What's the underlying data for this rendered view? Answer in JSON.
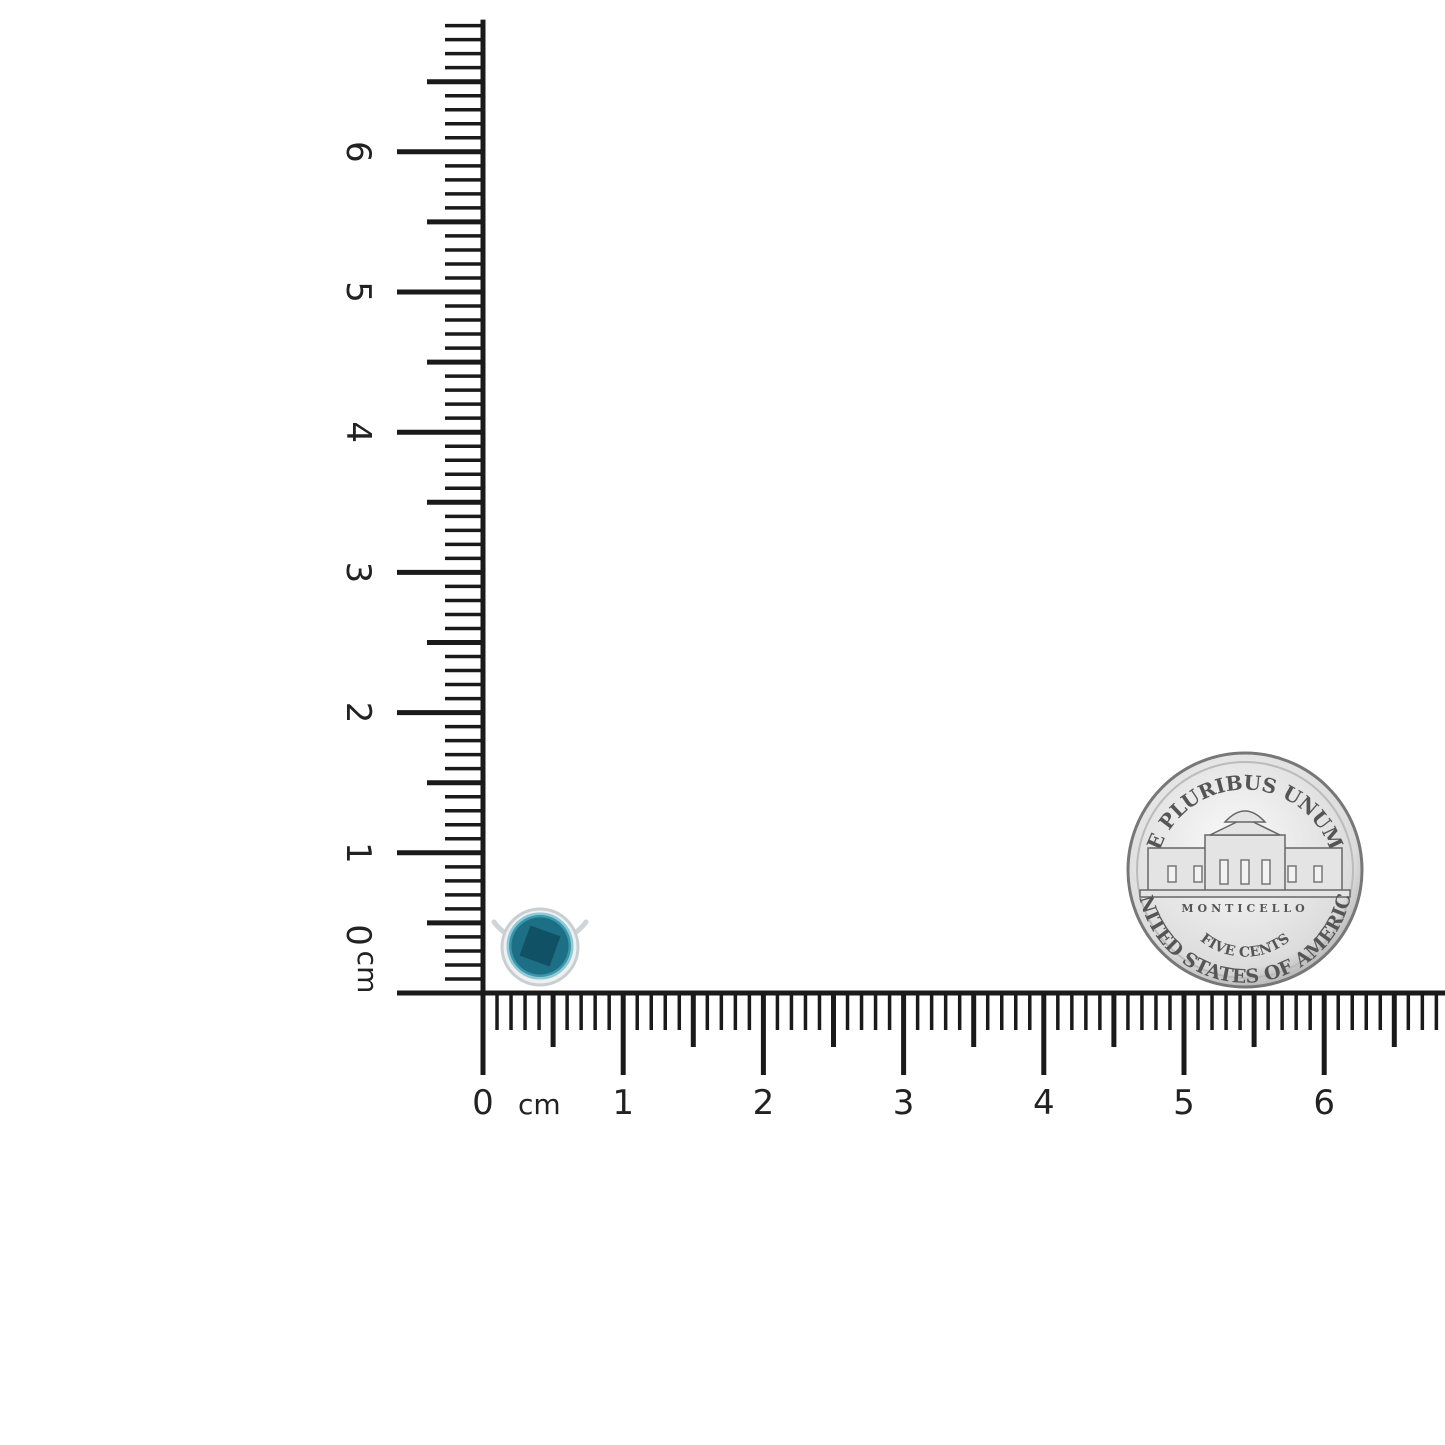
{
  "rulers": {
    "unit": "cm",
    "vertical": {
      "labels": [
        "0",
        "1",
        "2",
        "3",
        "4",
        "5",
        "6"
      ],
      "max_cm": 6.9
    },
    "horizontal": {
      "labels": [
        "0",
        "1",
        "2",
        "3",
        "4",
        "5",
        "6"
      ],
      "max_cm": 6.8
    }
  },
  "earring": {
    "stone_color": "#1d6f86",
    "metal_color": "#d9dde0"
  },
  "coin": {
    "top_text": "E PLURIBUS UNUM",
    "building_text": "MONTICELLO",
    "value_text": "FIVE CENTS",
    "bottom_text": "UNITED STATES OF AMERICA"
  }
}
